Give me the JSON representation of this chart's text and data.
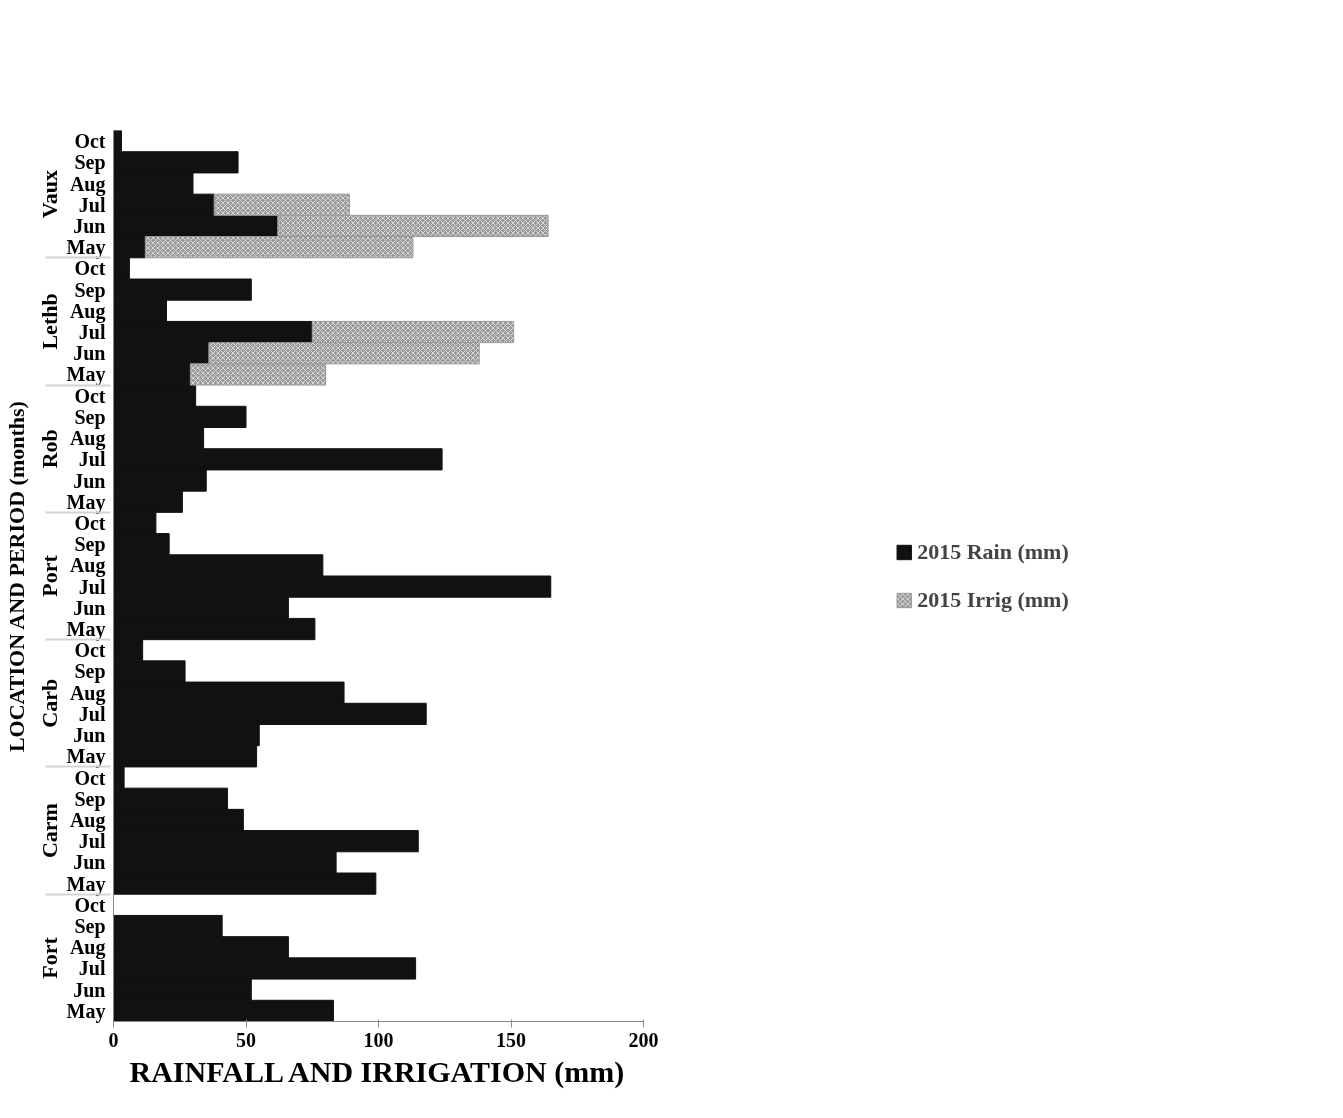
{
  "chart_data": {
    "type": "bar",
    "orientation": "horizontal",
    "stacked": true,
    "xlabel": "RAINFALL AND IRRIGATION (mm)",
    "ylabel": "LOCATION AND PERIOD (months)",
    "categories": [
      "Oct",
      "Sep",
      "Aug",
      "Jul",
      "Jun",
      "May",
      "Oct",
      "Sep",
      "Aug",
      "Jul",
      "Jun",
      "May",
      "Oct",
      "Sep",
      "Aug",
      "Jul",
      "Jun",
      "May",
      "Oct",
      "Sep",
      "Aug",
      "Jul",
      "Jun",
      "May",
      "Oct",
      "Sep",
      "Aug",
      "Jul",
      "Jun",
      "May",
      "Oct",
      "Sep",
      "Aug",
      "Jul",
      "Jun",
      "May",
      "Oct",
      "Sep",
      "Aug",
      "Jul",
      "Jun",
      "May"
    ],
    "annotations": [
      "Vaux",
      "Lethb",
      "Rob",
      "Port",
      "Carb",
      "Carm",
      "Fort"
    ],
    "series": [
      {
        "name": "2015 Rain (mm)",
        "color": "#111111",
        "values": [
          3,
          47,
          30,
          38,
          62,
          12,
          6,
          52,
          20,
          75,
          36,
          29,
          31,
          50,
          34,
          124,
          35,
          26,
          16,
          21,
          79,
          165,
          66,
          76,
          11,
          27,
          87,
          118,
          55,
          54,
          4,
          43,
          49,
          115,
          84,
          99,
          0,
          41,
          66,
          114,
          52,
          83
        ]
      },
      {
        "name": "2015 Irrig (mm)",
        "color": "#9a9a9a",
        "values": [
          null,
          null,
          null,
          51,
          102,
          101,
          null,
          null,
          null,
          76,
          102,
          51,
          null,
          null,
          null,
          null,
          null,
          null,
          null,
          null,
          null,
          null,
          null,
          null,
          null,
          null,
          null,
          null,
          null,
          null,
          null,
          null,
          null,
          null,
          null,
          null,
          null,
          null,
          null,
          null,
          null,
          null
        ]
      }
    ],
    "xlim": [
      0,
      200
    ],
    "xticks": [
      0,
      50,
      100,
      150,
      200
    ],
    "grid": false,
    "legend": "right"
  }
}
